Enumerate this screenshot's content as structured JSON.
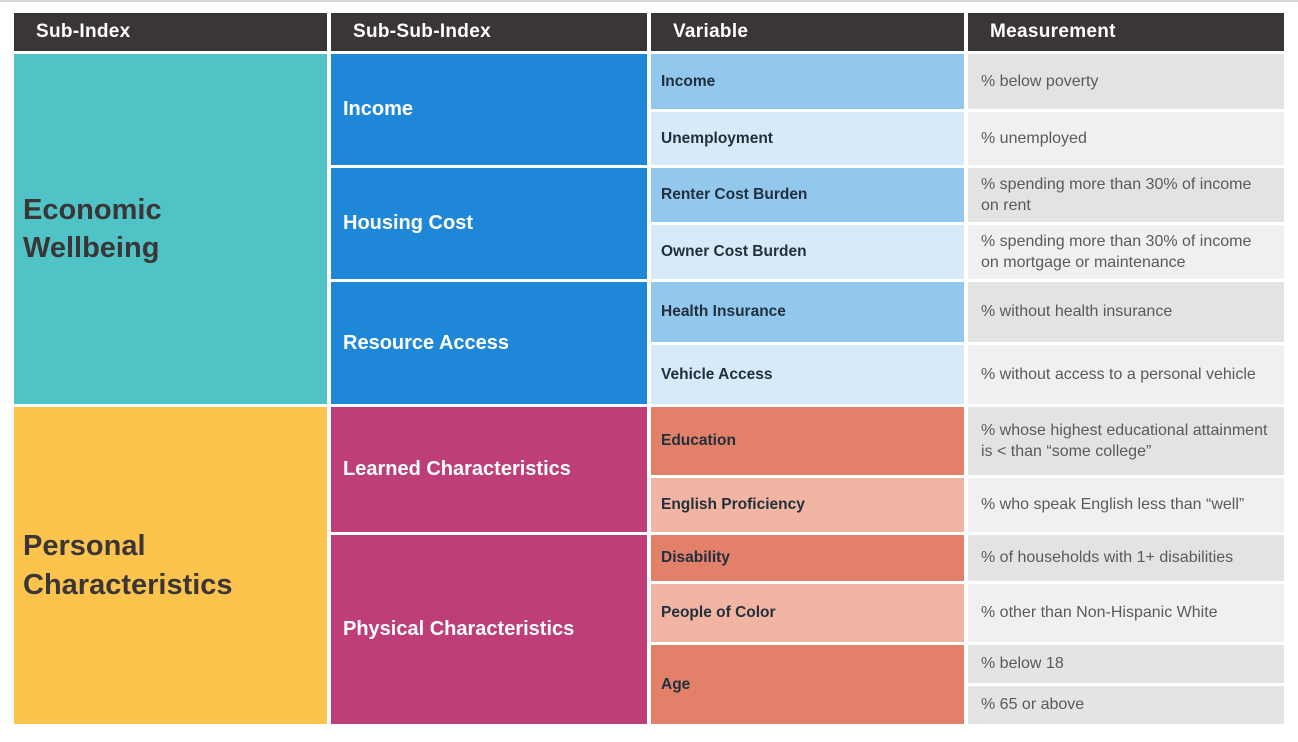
{
  "table": {
    "headers": [
      "Sub-Index",
      "Sub-Sub-Index",
      "Variable",
      "Measurement"
    ],
    "sections": [
      {
        "label": "Economic Wellbeing",
        "subsections": [
          {
            "label": "Income",
            "variables": [
              {
                "name": "Income",
                "measurements": [
                  "% below poverty"
                ]
              },
              {
                "name": "Unemployment",
                "measurements": [
                  "% unemployed"
                ]
              }
            ]
          },
          {
            "label": "Housing Cost",
            "variables": [
              {
                "name": "Renter Cost Burden",
                "measurements": [
                  "% spending more than 30% of income on rent"
                ]
              },
              {
                "name": "Owner Cost Burden",
                "measurements": [
                  "% spending more than 30% of income on mortgage or maintenance"
                ]
              }
            ]
          },
          {
            "label": "Resource Access",
            "variables": [
              {
                "name": "Health Insurance",
                "measurements": [
                  "% without health insurance"
                ]
              },
              {
                "name": "Vehicle Access",
                "measurements": [
                  "% without access to a personal vehicle"
                ]
              }
            ]
          }
        ]
      },
      {
        "label": "Personal Characteristics",
        "subsections": [
          {
            "label": "Learned Characteristics",
            "variables": [
              {
                "name": "Education",
                "measurements": [
                  "% whose highest educational attainment is < than “some college”"
                ]
              },
              {
                "name": "English Proficiency",
                "measurements": [
                  "% who speak English less than “well”"
                ]
              }
            ]
          },
          {
            "label": "Physical Characteristics",
            "variables": [
              {
                "name": "Disability",
                "measurements": [
                  "% of households with 1+ disabilities"
                ]
              },
              {
                "name": "People of Color",
                "measurements": [
                  "% other than Non-Hispanic White"
                ]
              },
              {
                "name": "Age",
                "measurements": [
                  "% below 18",
                  "% 65 or above"
                ]
              }
            ]
          }
        ]
      }
    ]
  },
  "colors": {
    "header_bg": "#3A3637",
    "economic_wellbeing_bg": "#4FC3C6",
    "personal_characteristics_bg": "#FDC44D",
    "sub_sub_index_blue": "#1E87D8",
    "sub_sub_index_magenta": "#BE3F78",
    "variable_blue_dark": "#92C7EE",
    "variable_blue_light": "#D6EAFA",
    "variable_salmon_dark": "#E2806A",
    "variable_salmon_light": "#F2B4A3",
    "measurement_gray_dark": "#E3E3E3",
    "measurement_gray_light": "#F0F0F0"
  }
}
